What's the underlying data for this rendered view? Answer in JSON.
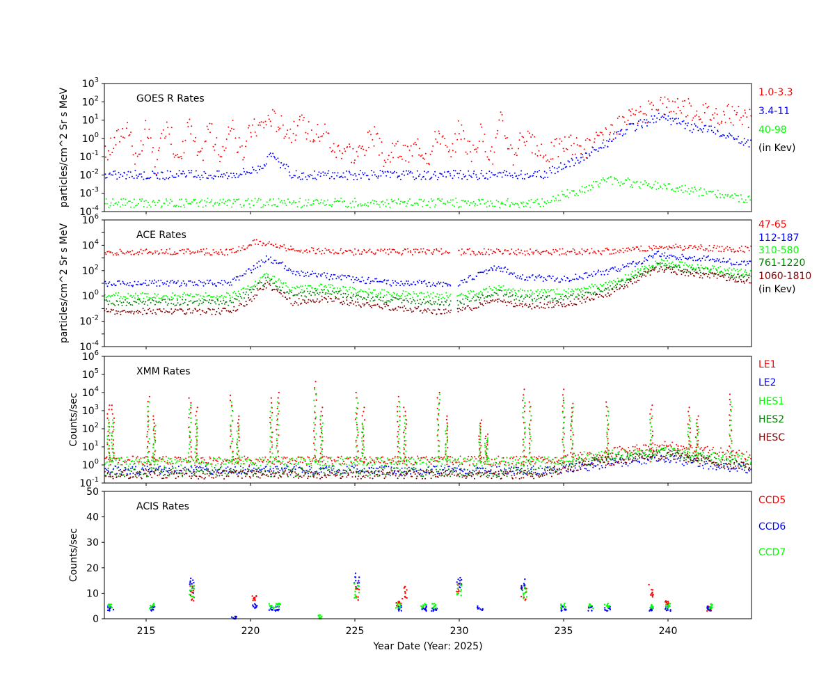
{
  "chart_data": [
    {
      "type": "scatter",
      "title": "GOES R Rates",
      "xlabel": "",
      "ylabel": "particles/cm^2 Sr s MeV",
      "yscale": "log",
      "ylim": [
        0.0001,
        1000
      ],
      "xlim": [
        213,
        244
      ],
      "ytick_labels": [
        "10^-4",
        "10^-3",
        "10^-2",
        "10^-1",
        "10^0",
        "10^1",
        "10^2",
        "10^3"
      ],
      "legend": [
        "1.0-3.3",
        "3.4-11",
        "40-98",
        "(in Kev)"
      ],
      "series": [
        {
          "name": "1.0-3.3",
          "color": "#ff0000",
          "x": [
            213,
            214.1,
            214.6,
            215,
            215.5,
            216,
            216.6,
            217,
            217.6,
            218,
            218.6,
            219,
            219.6,
            220,
            220.5,
            221,
            221.5,
            222,
            222.5,
            223,
            223.6,
            224,
            224.6,
            225,
            225.9,
            226.5,
            227,
            227.5,
            228,
            228.6,
            229,
            229.6,
            230,
            230.6,
            231,
            231.6,
            232,
            232.6,
            233,
            234,
            235,
            236,
            237,
            238,
            239,
            239.5,
            240,
            240.5,
            241,
            242,
            243,
            244
          ],
          "values": [
            0.1,
            6,
            0.03,
            4,
            0.03,
            10,
            0.03,
            8,
            0.05,
            6,
            0.05,
            8,
            0.1,
            3,
            5,
            15,
            5,
            2,
            6,
            1.5,
            3,
            0.2,
            0.4,
            0.1,
            1.5,
            0.05,
            0.3,
            0.1,
            0.5,
            0.1,
            3,
            0.06,
            5,
            0.1,
            2,
            0.1,
            10,
            0.1,
            2,
            0.1,
            0.5,
            0.3,
            1,
            8,
            25,
            100,
            60,
            80,
            40,
            25,
            20,
            10
          ]
        },
        {
          "name": "3.4-11",
          "color": "#0000ff",
          "x": [
            213,
            216,
            219,
            220.3,
            221,
            221.6,
            222,
            226,
            230,
            234,
            235,
            236,
            237,
            238,
            239,
            239.5,
            240,
            240.5,
            241,
            242,
            243,
            244
          ],
          "values": [
            0.01,
            0.01,
            0.01,
            0.02,
            0.1,
            0.03,
            0.01,
            0.01,
            0.01,
            0.01,
            0.03,
            0.1,
            0.5,
            3,
            8,
            15,
            10,
            8,
            4,
            3,
            1,
            0.5
          ]
        },
        {
          "name": "40-98",
          "color": "#00ff00",
          "x": [
            213,
            216,
            219,
            222,
            225,
            228,
            231,
            234,
            235,
            236,
            237,
            238,
            239,
            240,
            241,
            242,
            243,
            244
          ],
          "values": [
            0.0003,
            0.0003,
            0.0003,
            0.0003,
            0.0003,
            0.0003,
            0.0003,
            0.0003,
            0.0008,
            0.0015,
            0.006,
            0.004,
            0.003,
            0.0025,
            0.0015,
            0.001,
            0.0006,
            0.0004
          ]
        }
      ]
    },
    {
      "type": "scatter",
      "title": "ACE Rates",
      "xlabel": "",
      "ylabel": "particles/cm^2 Sr s MeV",
      "yscale": "log",
      "ylim": [
        0.0001,
        1000000
      ],
      "xlim": [
        213,
        244
      ],
      "ytick_labels": [
        "10^-4",
        "10^-2",
        "10^0",
        "10^2",
        "10^4",
        "10^6"
      ],
      "legend": [
        "47-65",
        "112-187",
        "310-580",
        "761-1220",
        "1060-1810",
        "(in Kev)"
      ],
      "series": [
        {
          "name": "47-65",
          "color": "#ff0000",
          "x": [
            213.5,
            216,
            219,
            220.4,
            221,
            222,
            224,
            227,
            229.5,
            230,
            232,
            234,
            236,
            238,
            239,
            240,
            241,
            242,
            243,
            244
          ],
          "values": [
            3000,
            3000,
            3000,
            20000,
            10000,
            5000,
            3000,
            3000,
            3000,
            3000,
            3000,
            3000,
            3000,
            4000,
            6000,
            8000,
            7000,
            6000,
            5000,
            5000
          ]
        },
        {
          "name": "112-187",
          "color": "#0000ff",
          "x": [
            213,
            216,
            219,
            220,
            220.8,
            221.5,
            222,
            223,
            225,
            227,
            229,
            230,
            231.8,
            233,
            235,
            236,
            237,
            238,
            239,
            239.5,
            240,
            241,
            242,
            243,
            244
          ],
          "values": [
            10,
            10,
            10,
            100,
            1000,
            300,
            60,
            50,
            20,
            10,
            10,
            10,
            200,
            30,
            20,
            40,
            80,
            200,
            800,
            2000,
            1500,
            1000,
            800,
            500,
            300
          ]
        },
        {
          "name": "310-580",
          "color": "#00ff00",
          "x": [
            213,
            216,
            219,
            220,
            220.8,
            221.5,
            222,
            223.5,
            226,
            229,
            230,
            231.8,
            233,
            235,
            236,
            237,
            238,
            239,
            239.5,
            240,
            241,
            242,
            243,
            244
          ],
          "values": [
            1,
            1,
            1,
            5,
            50,
            10,
            3,
            5,
            2,
            1,
            1,
            5,
            2,
            2,
            4,
            8,
            30,
            200,
            500,
            400,
            250,
            150,
            100,
            60
          ]
        },
        {
          "name": "761-1220",
          "color": "#008000",
          "x": [
            213,
            216,
            219,
            220,
            220.8,
            221.5,
            222,
            223.5,
            226,
            229,
            230,
            231.8,
            233,
            235,
            236,
            237,
            238,
            239,
            239.5,
            240,
            241,
            242,
            243,
            244
          ],
          "values": [
            0.3,
            0.3,
            0.3,
            2,
            20,
            4,
            1,
            2,
            0.6,
            0.3,
            0.3,
            2,
            0.6,
            0.6,
            1.5,
            3,
            15,
            100,
            250,
            200,
            120,
            80,
            50,
            30
          ]
        },
        {
          "name": "1060-1810",
          "color": "#800000",
          "x": [
            213,
            216,
            219,
            220,
            220.8,
            221.5,
            222,
            223.5,
            226,
            229,
            230,
            231.8,
            233,
            235,
            236,
            237,
            238,
            239,
            239.5,
            240,
            241,
            242,
            243,
            244
          ],
          "values": [
            0.06,
            0.06,
            0.06,
            0.5,
            8,
            1.5,
            0.3,
            0.6,
            0.15,
            0.06,
            0.06,
            0.5,
            0.15,
            0.2,
            0.5,
            1,
            8,
            60,
            120,
            100,
            60,
            40,
            25,
            15
          ]
        }
      ]
    },
    {
      "type": "scatter",
      "title": "XMM Rates",
      "xlabel": "",
      "ylabel": "Counts/sec",
      "yscale": "log",
      "ylim": [
        0.1,
        1000000
      ],
      "xlim": [
        213,
        244
      ],
      "ytick_labels": [
        "10^-1",
        "10^0",
        "10^1",
        "10^2",
        "10^3",
        "10^4",
        "10^5",
        "10^6"
      ],
      "legend": [
        "LE1",
        "LE2",
        "HES1",
        "HES2",
        "HESC"
      ],
      "spike_days": [
        213.2,
        213.4,
        215.1,
        215.4,
        217.1,
        217.4,
        219.1,
        219.4,
        221,
        221.3,
        223.1,
        223.4,
        225.1,
        225.4,
        227.1,
        227.4,
        229,
        229.4,
        231,
        231.3,
        233.1,
        233.4,
        235,
        235.4,
        237.1,
        239.2,
        241,
        241.4,
        243
      ],
      "series": [
        {
          "name": "LE1",
          "color": "#ff0000",
          "x": [
            213,
            220,
            227,
            234,
            235,
            236,
            237,
            238,
            239,
            240,
            241,
            242,
            243,
            244
          ],
          "values": [
            1.7,
            1.7,
            1.7,
            1.7,
            2,
            3,
            4,
            7,
            10,
            12,
            8,
            6,
            4,
            3
          ],
          "spike_peaks": [
            2000,
            2000,
            6000,
            500,
            5000,
            1500,
            7000,
            500,
            5000,
            10000,
            40000,
            1500,
            10000,
            1500,
            6000,
            1500,
            10000,
            500,
            300,
            50,
            15000,
            3000,
            15000,
            2500,
            3000,
            2000,
            1500,
            500,
            8000
          ]
        },
        {
          "name": "LE2",
          "color": "#0000ff",
          "x": [
            213,
            220,
            227,
            234,
            235,
            236,
            237,
            238,
            239,
            240,
            241,
            242,
            243,
            244
          ],
          "values": [
            0.5,
            0.5,
            0.5,
            0.5,
            0.6,
            0.8,
            1.2,
            1.5,
            2,
            2.2,
            1.5,
            1,
            0.7,
            0.6
          ]
        },
        {
          "name": "HES1",
          "color": "#00ff00",
          "x": [
            213,
            220,
            227,
            234,
            235,
            236,
            237,
            238,
            239,
            240,
            241,
            242,
            243,
            244
          ],
          "values": [
            1.5,
            1.5,
            1.5,
            1.5,
            2,
            3,
            3.5,
            4,
            5,
            6,
            4,
            3,
            2.5,
            2
          ],
          "spike_peaks": [
            300,
            300,
            3000,
            150,
            2000,
            300,
            3000,
            150,
            1500,
            3000,
            15000,
            500,
            5000,
            200,
            3000,
            500,
            8000,
            150,
            150,
            30,
            5000,
            1500,
            5000,
            1500,
            1500,
            500,
            400,
            200,
            3000
          ]
        },
        {
          "name": "HES2",
          "color": "#008000",
          "x": [
            213,
            220,
            227,
            234,
            235,
            236,
            237,
            238,
            239,
            240,
            241,
            242,
            243,
            244
          ],
          "values": [
            0.4,
            0.4,
            0.4,
            0.4,
            0.8,
            1.5,
            2,
            3,
            4,
            5,
            3,
            2,
            1.2,
            1
          ]
        },
        {
          "name": "HESC",
          "color": "#800000",
          "x": [
            213,
            220,
            227,
            234,
            235,
            236,
            237,
            238,
            239,
            240,
            241,
            242,
            243,
            244
          ],
          "values": [
            0.3,
            0.3,
            0.3,
            0.3,
            0.6,
            1,
            1.5,
            2,
            3,
            4,
            2.5,
            1.5,
            0.9,
            0.8
          ]
        }
      ]
    },
    {
      "type": "scatter",
      "title": "ACIS Rates",
      "xlabel": "Year Date (Year: 2025)",
      "ylabel": "Counts/sec",
      "yscale": "linear",
      "ylim": [
        0,
        50
      ],
      "xlim": [
        213,
        244
      ],
      "yticks": [
        0,
        10,
        20,
        30,
        40,
        50
      ],
      "xticks": [
        215,
        220,
        225,
        230,
        235,
        240
      ],
      "legend": [
        "CCD5",
        "CCD6",
        "CCD7"
      ],
      "series": [
        {
          "name": "CCD5",
          "color": "#ff0000",
          "x": [
            217.2,
            220.2,
            225.1,
            227.1,
            227.4,
            230,
            233.1,
            239.2,
            240,
            242
          ],
          "values": [
            10,
            8,
            10,
            6,
            10,
            12,
            10,
            11,
            6,
            4
          ]
        },
        {
          "name": "CCD6",
          "color": "#0000ff",
          "x": [
            213.3,
            215.3,
            217.2,
            219.2,
            220.2,
            221,
            221.3,
            225.1,
            227.1,
            228.3,
            228.8,
            230,
            231,
            233.1,
            235,
            236.3,
            237.1,
            239.2,
            240,
            242
          ],
          "values": [
            4,
            4,
            13,
            0,
            5,
            4,
            4,
            15,
            4,
            4,
            4,
            14,
            4,
            13,
            4,
            4,
            4,
            4,
            4,
            4
          ]
        },
        {
          "name": "CCD7",
          "color": "#00ff00",
          "x": [
            213.3,
            215.3,
            217.2,
            221,
            221.3,
            223.3,
            225.1,
            227.1,
            228.3,
            228.8,
            230,
            233.1,
            235,
            236.3,
            237.1,
            239.2,
            240,
            242
          ],
          "values": [
            5,
            5,
            11,
            5,
            5,
            0.5,
            11,
            5,
            5,
            5,
            12,
            11,
            5,
            5,
            5,
            5,
            5,
            5
          ]
        }
      ]
    }
  ]
}
